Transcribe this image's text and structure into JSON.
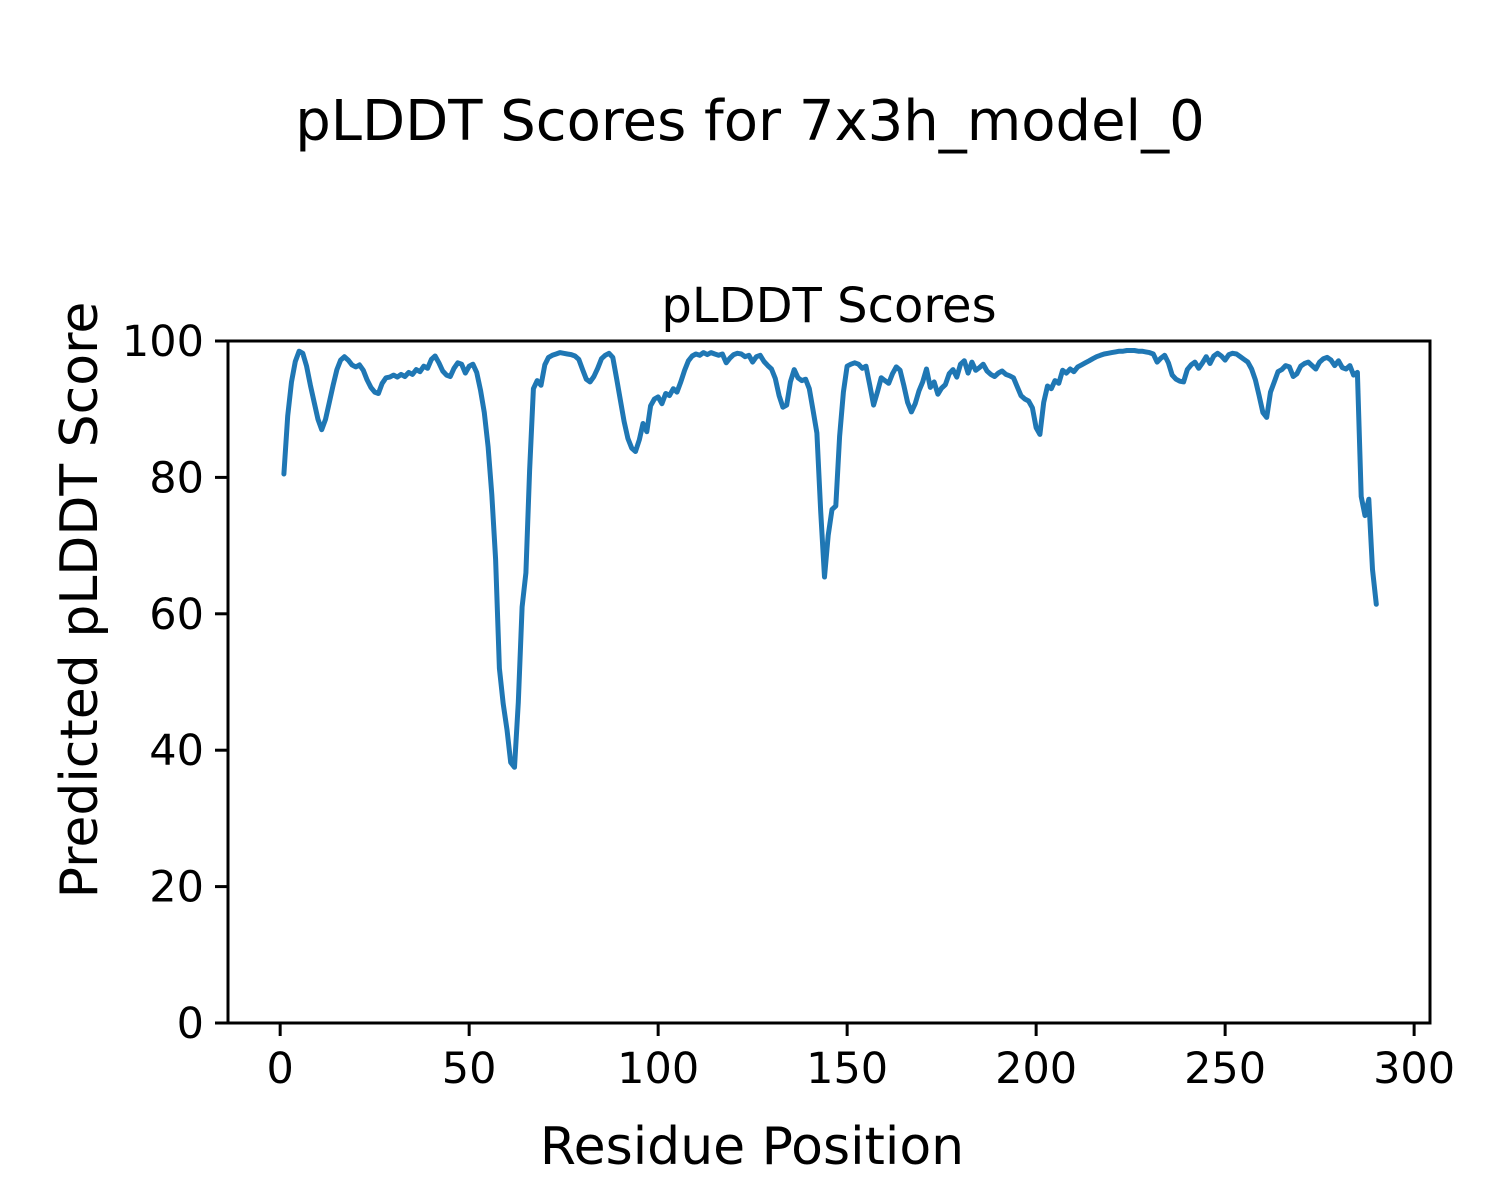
{
  "chart_data": {
    "type": "line",
    "suptitle": "pLDDT Scores for 7x3h_model_0",
    "title": "pLDDT Scores",
    "xlabel": "Residue Position",
    "ylabel": "Predicted pLDDT Score",
    "xlim": [
      -13.8,
      304.2
    ],
    "ylim": [
      0,
      100
    ],
    "xticks": [
      0,
      50,
      100,
      150,
      200,
      250,
      300
    ],
    "yticks": [
      0,
      20,
      40,
      60,
      80,
      100
    ],
    "grid": false,
    "legend": false,
    "line_color": "#1f77b4",
    "axis_color": "#000000",
    "series": [
      {
        "name": "pLDDT",
        "x_start": 1,
        "x_step": 1,
        "y": [
          80.5,
          89.0,
          94.0,
          97.0,
          98.5,
          98.2,
          96.3,
          93.5,
          91.0,
          88.5,
          87.0,
          88.5,
          91.0,
          93.5,
          95.8,
          97.2,
          97.7,
          97.2,
          96.5,
          96.2,
          96.5,
          95.7,
          94.3,
          93.2,
          92.5,
          92.3,
          93.8,
          94.6,
          94.7,
          95.0,
          94.7,
          95.1,
          94.8,
          95.4,
          95.1,
          95.8,
          95.5,
          96.3,
          96.0,
          97.3,
          97.8,
          96.8,
          95.6,
          95.0,
          94.8,
          96.0,
          96.8,
          96.6,
          95.3,
          96.3,
          96.6,
          95.4,
          92.8,
          89.5,
          84.5,
          77.5,
          68.0,
          52.0,
          46.8,
          43.0,
          38.2,
          37.5,
          47.0,
          61.0,
          66.0,
          81.0,
          93.0,
          94.2,
          93.5,
          96.5,
          97.6,
          97.9,
          98.1,
          98.3,
          98.2,
          98.1,
          98.0,
          97.8,
          97.3,
          95.8,
          94.4,
          94.0,
          94.8,
          96.0,
          97.4,
          97.9,
          98.2,
          97.6,
          94.5,
          91.3,
          88.2,
          85.7,
          84.3,
          83.8,
          85.5,
          87.9,
          86.7,
          90.5,
          91.5,
          91.8,
          90.8,
          92.3,
          92.0,
          93.0,
          92.5,
          94.0,
          95.7,
          97.1,
          97.8,
          98.1,
          97.9,
          98.3,
          98.0,
          98.3,
          98.1,
          97.9,
          98.1,
          96.8,
          97.5,
          98.0,
          98.2,
          98.1,
          97.7,
          97.9,
          96.9,
          97.7,
          97.9,
          97.0,
          96.4,
          95.9,
          94.5,
          92.0,
          90.3,
          90.6,
          94.0,
          95.8,
          94.6,
          94.2,
          94.4,
          93.0,
          89.8,
          86.5,
          75.0,
          65.4,
          71.5,
          75.3,
          75.8,
          86.0,
          92.5,
          96.3,
          96.6,
          96.8,
          96.6,
          96.0,
          96.3,
          93.5,
          90.6,
          92.5,
          94.6,
          94.2,
          93.8,
          95.2,
          96.2,
          95.7,
          93.5,
          91.0,
          89.6,
          90.8,
          92.7,
          94.0,
          95.9,
          93.2,
          94.0,
          92.2,
          93.1,
          93.6,
          95.2,
          95.8,
          94.7,
          96.6,
          97.1,
          95.3,
          96.9,
          95.7,
          96.1,
          96.6,
          95.6,
          95.1,
          94.8,
          95.3,
          95.6,
          95.1,
          94.9,
          94.6,
          93.3,
          92.0,
          91.5,
          91.2,
          90.2,
          87.3,
          86.3,
          91.0,
          93.4,
          93.0,
          94.2,
          93.8,
          95.7,
          95.3,
          95.9,
          95.5,
          96.2,
          96.5,
          96.8,
          97.1,
          97.4,
          97.7,
          97.9,
          98.1,
          98.2,
          98.3,
          98.4,
          98.5,
          98.5,
          98.6,
          98.6,
          98.6,
          98.5,
          98.5,
          98.4,
          98.3,
          98.1,
          96.9,
          97.5,
          97.9,
          96.8,
          95.0,
          94.4,
          94.1,
          94.0,
          95.8,
          96.5,
          96.9,
          96.0,
          96.8,
          97.7,
          96.7,
          97.8,
          98.2,
          97.8,
          97.2,
          98.0,
          98.2,
          98.1,
          97.7,
          97.3,
          96.9,
          95.9,
          94.3,
          92.0,
          89.5,
          88.8,
          92.5,
          94.0,
          95.5,
          95.8,
          96.4,
          96.2,
          94.8,
          95.2,
          96.3,
          96.7,
          96.9,
          96.4,
          95.9,
          96.9,
          97.4,
          97.6,
          97.2,
          96.4,
          97.1,
          96.1,
          95.9,
          96.4,
          95.0,
          95.4,
          77.2,
          74.4,
          76.8,
          66.5,
          61.4
        ]
      }
    ]
  }
}
